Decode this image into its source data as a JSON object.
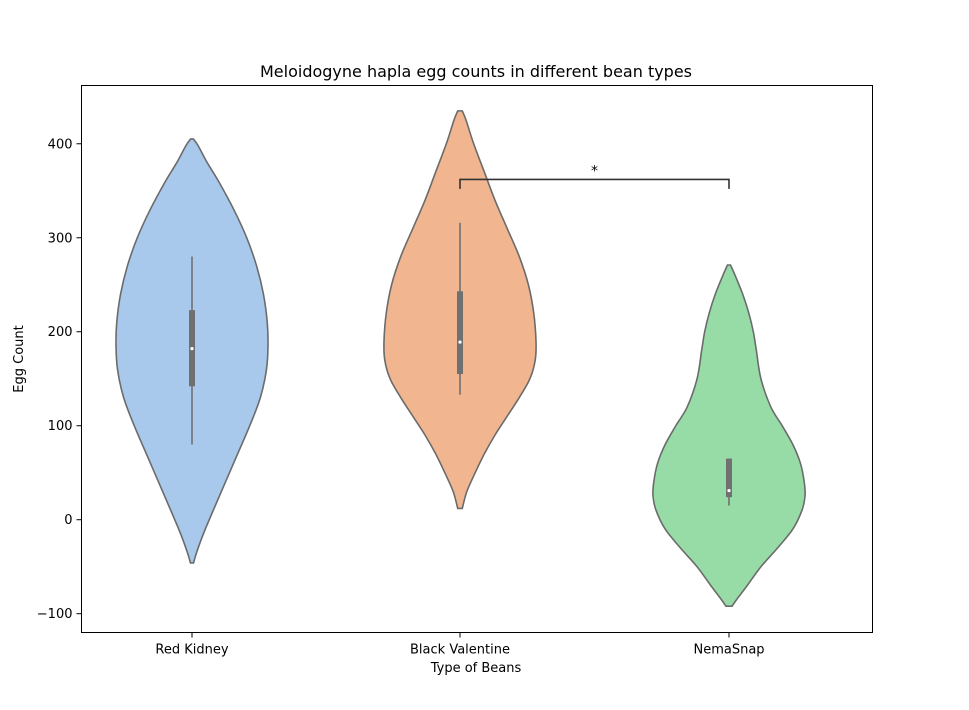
{
  "chart_data": {
    "type": "violin",
    "title": "Meloidogyne hapla egg counts in different bean types",
    "xlabel": "Type of Beans",
    "ylabel": "Egg Count",
    "ylim": [
      -120,
      462
    ],
    "yticks": [
      -100,
      0,
      100,
      200,
      300,
      400
    ],
    "ytick_labels": [
      "−100",
      "0",
      "100",
      "200",
      "300",
      "400"
    ],
    "grid": false,
    "categories": [
      "Red Kidney",
      "Black Valentine",
      "NemaSnap"
    ],
    "violins": [
      {
        "category": "Red Kidney",
        "color": "#a8c8ec",
        "min": -46,
        "max": 405,
        "median": 182,
        "q1": 142,
        "q3": 223,
        "whisker_low": 80,
        "whisker_high": 280,
        "density": [
          [
            405,
            0.02
          ],
          [
            398,
            0.08
          ],
          [
            380,
            0.2
          ],
          [
            360,
            0.35
          ],
          [
            330,
            0.55
          ],
          [
            300,
            0.72
          ],
          [
            270,
            0.85
          ],
          [
            240,
            0.94
          ],
          [
            210,
            0.99
          ],
          [
            185,
            1.0
          ],
          [
            160,
            0.98
          ],
          [
            130,
            0.9
          ],
          [
            100,
            0.76
          ],
          [
            70,
            0.6
          ],
          [
            40,
            0.44
          ],
          [
            10,
            0.28
          ],
          [
            -15,
            0.15
          ],
          [
            -35,
            0.06
          ],
          [
            -46,
            0.02
          ]
        ]
      },
      {
        "category": "Black Valentine",
        "color": "#f1b690",
        "min": 12,
        "max": 435,
        "median": 189,
        "q1": 155,
        "q3": 243,
        "whisker_low": 133,
        "whisker_high": 316,
        "density": [
          [
            435,
            0.03
          ],
          [
            425,
            0.08
          ],
          [
            400,
            0.18
          ],
          [
            370,
            0.32
          ],
          [
            340,
            0.46
          ],
          [
            310,
            0.62
          ],
          [
            280,
            0.78
          ],
          [
            250,
            0.9
          ],
          [
            220,
            0.97
          ],
          [
            190,
            1.0
          ],
          [
            170,
            0.99
          ],
          [
            150,
            0.92
          ],
          [
            130,
            0.78
          ],
          [
            110,
            0.62
          ],
          [
            90,
            0.46
          ],
          [
            70,
            0.32
          ],
          [
            50,
            0.2
          ],
          [
            30,
            0.09
          ],
          [
            12,
            0.03
          ]
        ]
      },
      {
        "category": "NemaSnap",
        "color": "#97dca7",
        "min": -92,
        "max": 271,
        "median": 31,
        "q1": 24,
        "q3": 65,
        "whisker_low": 15,
        "whisker_high": 65,
        "density": [
          [
            271,
            0.02
          ],
          [
            260,
            0.08
          ],
          [
            240,
            0.18
          ],
          [
            220,
            0.26
          ],
          [
            200,
            0.32
          ],
          [
            180,
            0.36
          ],
          [
            150,
            0.42
          ],
          [
            120,
            0.55
          ],
          [
            100,
            0.7
          ],
          [
            80,
            0.84
          ],
          [
            60,
            0.94
          ],
          [
            40,
            0.99
          ],
          [
            25,
            1.0
          ],
          [
            10,
            0.96
          ],
          [
            -10,
            0.84
          ],
          [
            -30,
            0.64
          ],
          [
            -50,
            0.42
          ],
          [
            -70,
            0.24
          ],
          [
            -85,
            0.1
          ],
          [
            -92,
            0.04
          ]
        ]
      }
    ],
    "annotations": [
      {
        "type": "significance",
        "from": "Black Valentine",
        "to": "NemaSnap",
        "y": 362,
        "drop": 10,
        "label": "*"
      }
    ]
  }
}
